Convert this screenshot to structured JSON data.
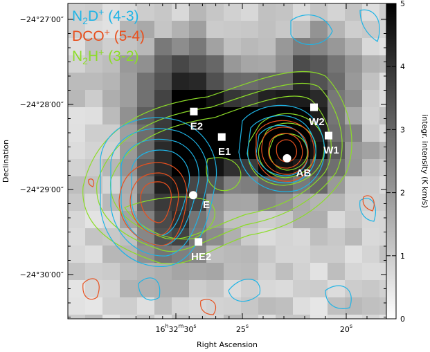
{
  "chart_data": {
    "type": "heatmap",
    "xlabel": "Right Ascension",
    "ylabel": "Declination",
    "colorbar_label": "integr. intensity (K km/s)",
    "colorbar_range": [
      0,
      5
    ],
    "colorbar_ticks": [
      "0",
      "1",
      "2",
      "3",
      "4",
      "5"
    ],
    "colormap": "gray-inverse",
    "x_ticks": [
      {
        "h": "16",
        "m": "32",
        "s": "30",
        "label_parts": [
          "16",
          "h",
          "32",
          "m",
          "30",
          "s"
        ]
      },
      {
        "h": "",
        "m": "",
        "s": "25",
        "label_parts": [
          "25",
          "s"
        ]
      },
      {
        "h": "",
        "m": "",
        "s": "20",
        "label_parts": [
          "20",
          "s"
        ]
      }
    ],
    "y_ticks": [
      {
        "label": "−24°27′00″",
        "dec_arcsec": 0
      },
      {
        "label": "−24°28′00″",
        "dec_arcsec": -60
      },
      {
        "label": "−24°29′00″",
        "dec_arcsec": -120
      },
      {
        "label": "−24°30′00″",
        "dec_arcsec": -180
      }
    ],
    "legend": [
      {
        "name": "N2D+ (4-3)",
        "base": "N",
        "sub": "2",
        "rest": "D",
        "sup": "+",
        "tail": " (4-3)",
        "color": "#1eb4e6"
      },
      {
        "name": "DCO+ (5-4)",
        "base": "DCO",
        "sub": "",
        "rest": "",
        "sup": "+",
        "tail": " (5-4)",
        "color": "#e8501e"
      },
      {
        "name": "N2H+ (3-2)",
        "base": "N",
        "sub": "2",
        "rest": "H",
        "sup": "+",
        "tail": " (3-2)",
        "color": "#8cdc28"
      }
    ],
    "sources": [
      {
        "name": "E2",
        "ra_s": 28.65,
        "dec_arcsec": -65,
        "marker": "square"
      },
      {
        "name": "E1",
        "ra_s": 26.55,
        "dec_arcsec": -83,
        "marker": "square"
      },
      {
        "name": "W2",
        "ra_s": 21.55,
        "dec_arcsec": -62,
        "marker": "square"
      },
      {
        "name": "W1",
        "ra_s": 20.85,
        "dec_arcsec": -82,
        "marker": "square"
      },
      {
        "name": "AB",
        "ra_s": 22.85,
        "dec_arcsec": -98,
        "marker": "circle"
      },
      {
        "name": "E",
        "ra_s": 28.7,
        "dec_arcsec": -124,
        "marker": "circle"
      },
      {
        "name": "HE2",
        "ra_s": 28.3,
        "dec_arcsec": -157,
        "marker": "square"
      }
    ]
  }
}
